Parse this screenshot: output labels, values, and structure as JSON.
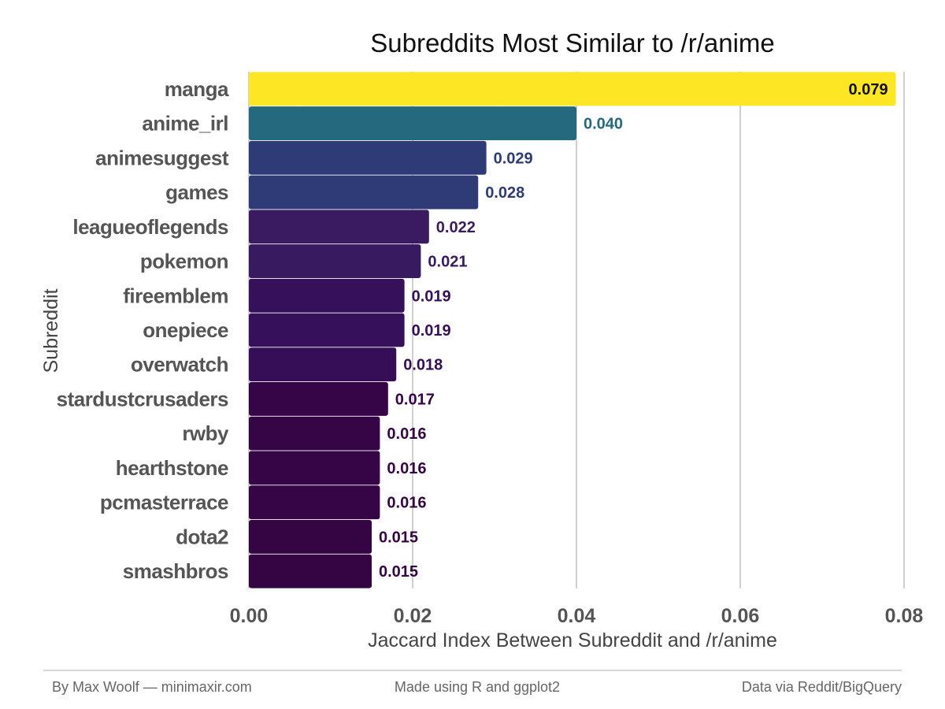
{
  "chart_data": {
    "type": "bar",
    "orientation": "horizontal",
    "title": "Subreddits Most Similar to /r/anime",
    "xlabel": "Jaccard Index Between Subreddit and /r/anime",
    "ylabel": "Subreddit",
    "categories": [
      "manga",
      "anime_irl",
      "animesuggest",
      "games",
      "leagueoflegends",
      "pokemon",
      "fireemblem",
      "onepiece",
      "overwatch",
      "stardustcrusaders",
      "rwby",
      "hearthstone",
      "pcmasterrace",
      "dota2",
      "smashbros"
    ],
    "values": [
      0.079,
      0.04,
      0.029,
      0.028,
      0.022,
      0.021,
      0.019,
      0.019,
      0.018,
      0.017,
      0.016,
      0.016,
      0.016,
      0.015,
      0.015
    ],
    "value_labels": [
      "0.079",
      "0.040",
      "0.029",
      "0.028",
      "0.022",
      "0.021",
      "0.019",
      "0.019",
      "0.018",
      "0.017",
      "0.016",
      "0.016",
      "0.016",
      "0.015",
      "0.015"
    ],
    "xlim": [
      0,
      0.08
    ],
    "xticks": [
      0,
      0.02,
      0.04,
      0.06,
      0.08
    ],
    "xtick_labels": [
      "0.00",
      "0.02",
      "0.04",
      "0.06",
      "0.08"
    ],
    "grid": "vertical-major",
    "legend": "none",
    "color_scale": "viridis",
    "colors": [
      "#fde725",
      "#25697f",
      "#2e3b77",
      "#2e3b77",
      "#3a1b62",
      "#371a60",
      "#36105a",
      "#36105a",
      "#350e57",
      "#350548",
      "#350545",
      "#350545",
      "#350545",
      "#340443",
      "#340443"
    ],
    "label_colors": [
      "#111111",
      "#25697f",
      "#2e3b77",
      "#2e3b77",
      "#3a1b62",
      "#371a60",
      "#36105a",
      "#36105a",
      "#350e57",
      "#350548",
      "#350545",
      "#350545",
      "#350545",
      "#340443",
      "#340443"
    ]
  },
  "footer": {
    "left": "By Max Woolf — minimaxir.com",
    "center": "Made using R and ggplot2",
    "right": "Data via Reddit/BigQuery"
  }
}
